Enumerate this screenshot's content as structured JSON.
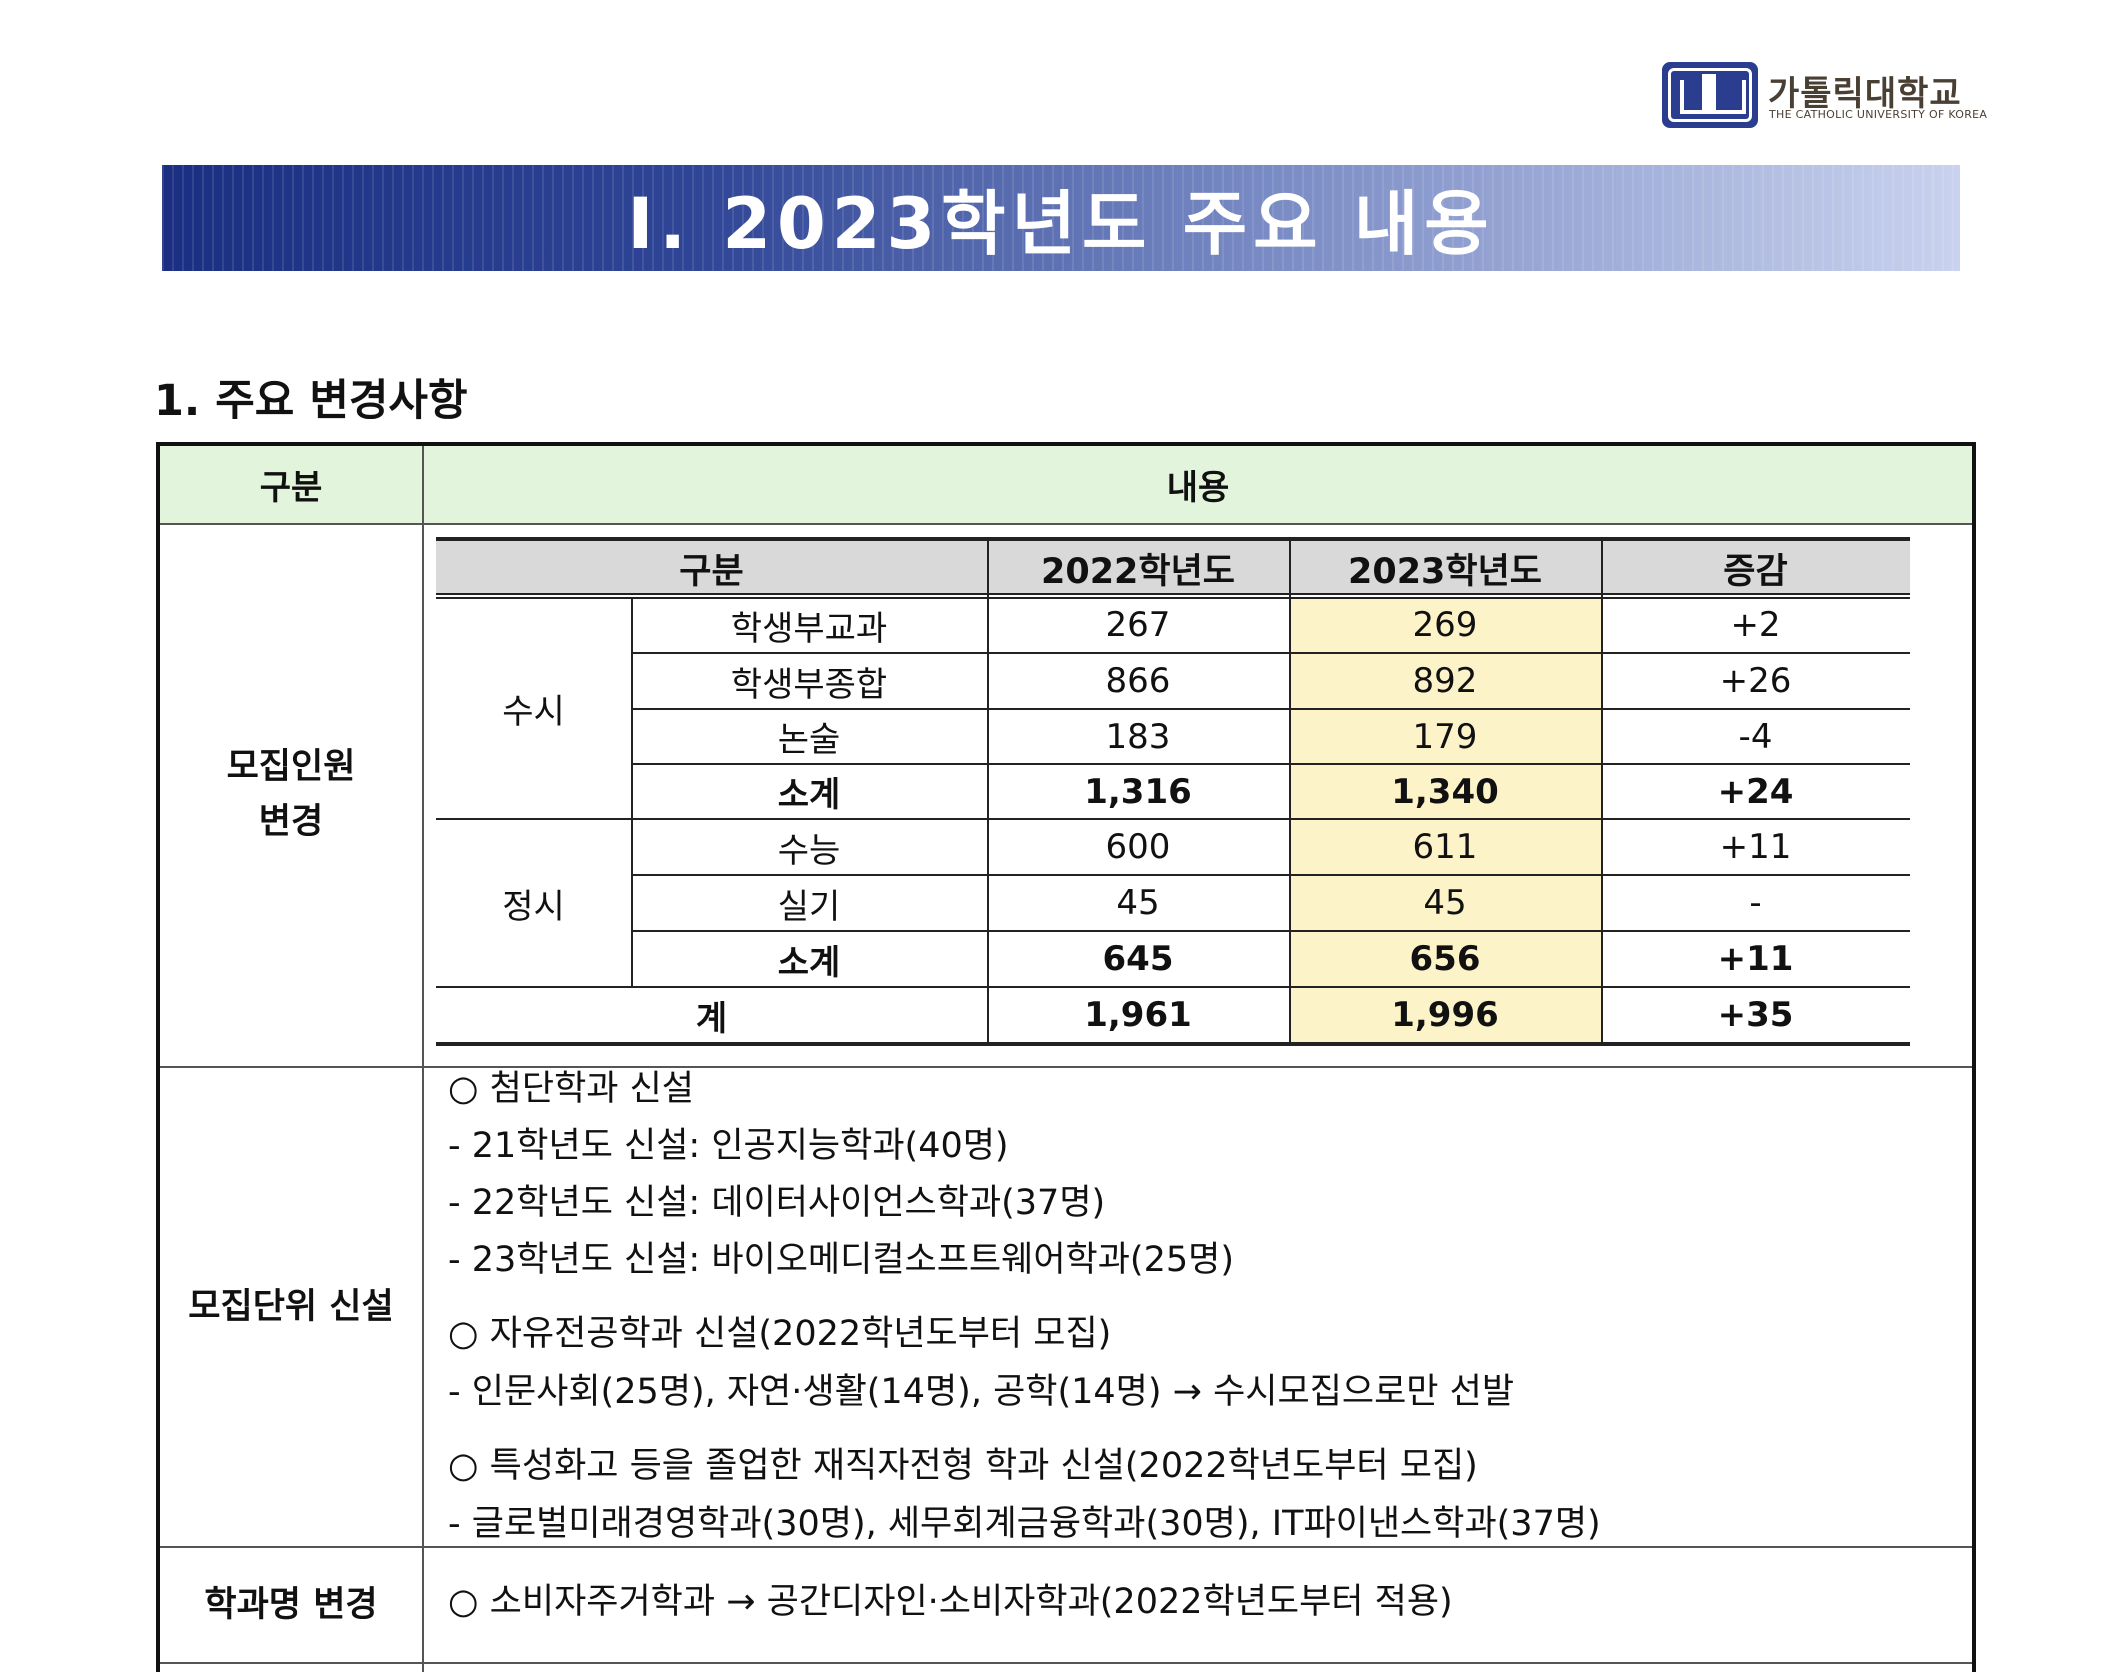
{
  "logo": {
    "name": "가톨릭대학교",
    "sub": "THE CATHOLIC UNIVERSITY OF KOREA"
  },
  "banner": {
    "title": "Ⅰ. 2023학년도 주요 내용"
  },
  "section": {
    "heading": "1. 주요 변경사항"
  },
  "outer_table": {
    "head_category": "구분",
    "head_content": "내용",
    "rows": [
      {
        "label_line1": "모집인원",
        "label_line2": "변경"
      },
      {
        "label": "모집단위 신설"
      },
      {
        "label": "학과명 변경"
      }
    ]
  },
  "inner_table": {
    "headers": [
      "구분",
      "2022학년도",
      "2023학년도",
      "증감"
    ],
    "groups": [
      {
        "name": "수시",
        "rows": [
          {
            "item": "학생부교과",
            "y2022": "267",
            "y2023": "269",
            "diff": "+2"
          },
          {
            "item": "학생부종합",
            "y2022": "866",
            "y2023": "892",
            "diff": "+26"
          },
          {
            "item": "논술",
            "y2022": "183",
            "y2023": "179",
            "diff": "-4"
          },
          {
            "item": "소계",
            "y2022": "1,316",
            "y2023": "1,340",
            "diff": "+24"
          }
        ]
      },
      {
        "name": "정시",
        "rows": [
          {
            "item": "수능",
            "y2022": "600",
            "y2023": "611",
            "diff": "+11"
          },
          {
            "item": "실기",
            "y2022": "45",
            "y2023": "45",
            "diff": "-"
          },
          {
            "item": "소계",
            "y2022": "645",
            "y2023": "656",
            "diff": "+11"
          }
        ]
      }
    ],
    "total": {
      "item": "계",
      "y2022": "1,961",
      "y2023": "1,996",
      "diff": "+35"
    },
    "highlight_color": "#fdf3c8"
  },
  "new_units": {
    "b1": "○ 첨단학과 신설",
    "b1_items": [
      "- 21학년도 신설: 인공지능학과(40명)",
      "- 22학년도 신설: 데이터사이언스학과(37명)",
      "- 23학년도 신설: 바이오메디컬소프트웨어학과(25명)"
    ],
    "b2": "○ 자유전공학과 신설(2022학년도부터 모집)",
    "b2_items": [
      "- 인문사회(25명), 자연·생활(14명), 공학(14명) → 수시모집으로만 선발"
    ],
    "b3": "○ 특성화고 등을 졸업한 재직자전형 학과 신설(2022학년도부터 모집)",
    "b3_items": [
      "- 글로벌미래경영학과(30명), 세무회계금융학과(30명), IT파이낸스학과(37명)"
    ]
  },
  "rename": {
    "text": "○ 소비자주거학과 → 공간디자인·소비자학과(2022학년도부터 적용)"
  }
}
